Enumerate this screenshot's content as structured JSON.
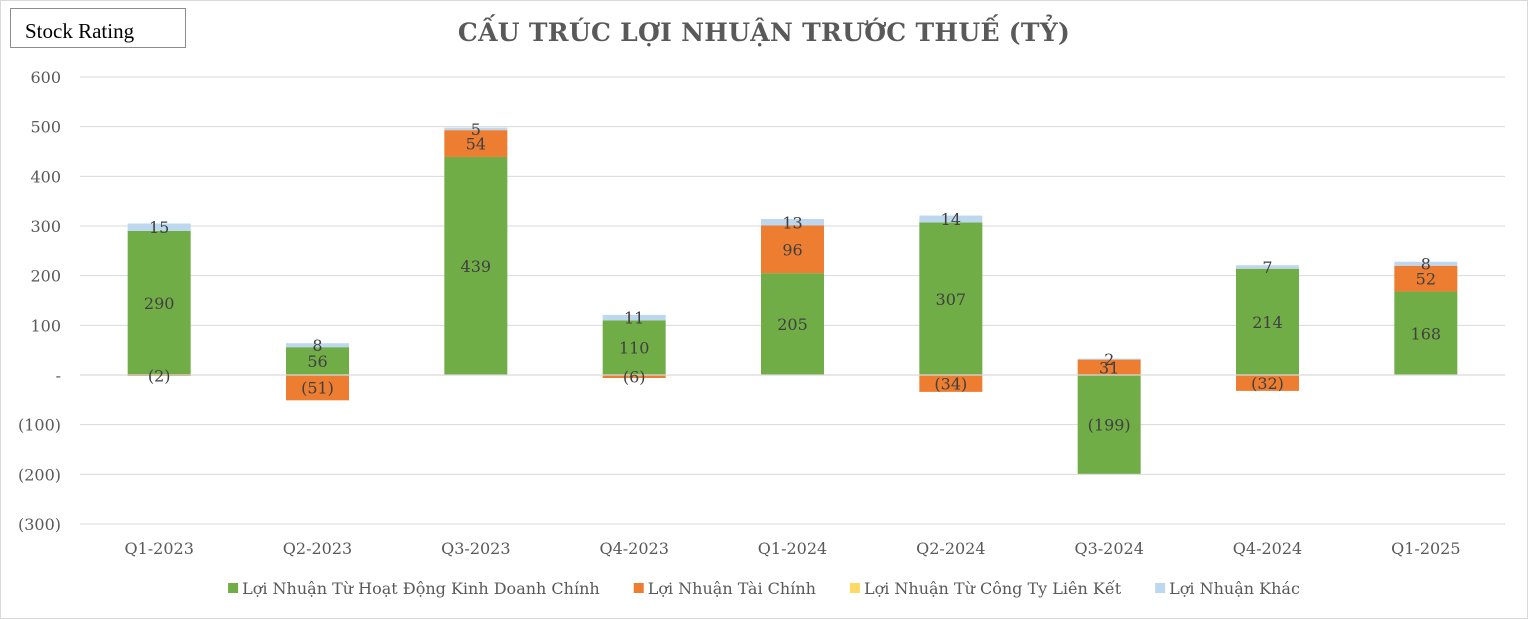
{
  "badge": {
    "label": "Stock Rating"
  },
  "chart_data": {
    "type": "bar",
    "stacked": true,
    "title": "CẤU TRÚC LỢI NHUẬN TRƯỚC THUẾ (TỶ)",
    "xlabel": "",
    "ylabel": "",
    "categories": [
      "Q1-2023",
      "Q2-2023",
      "Q3-2023",
      "Q4-2023",
      "Q1-2024",
      "Q2-2024",
      "Q3-2024",
      "Q4-2024",
      "Q1-2025"
    ],
    "series": [
      {
        "name": "Lợi Nhuận Từ Hoạt Động Kinh Doanh Chính",
        "color": "#70ad47",
        "values": [
          290,
          56,
          439,
          110,
          205,
          307,
          -199,
          214,
          168
        ],
        "labels": [
          "290",
          "56",
          "439",
          "110",
          "205",
          "307",
          "(199)",
          "214",
          "168"
        ]
      },
      {
        "name": "Lợi Nhuận Tài Chính",
        "color": "#ed7d31",
        "values": [
          -2,
          -51,
          54,
          -6,
          96,
          -34,
          31,
          -32,
          52
        ],
        "labels": [
          "(2)",
          "(51)",
          "54",
          "(6)",
          "96",
          "(34)",
          "31",
          "(32)",
          "52"
        ]
      },
      {
        "name": "Lợi Nhuận Từ Công Ty Liên Kết",
        "color": "#ffd966",
        "values": [
          0,
          0,
          0,
          0,
          0,
          0,
          0,
          0,
          0
        ],
        "labels": [
          "",
          "",
          "",
          "",
          "",
          "",
          "",
          "",
          ""
        ]
      },
      {
        "name": "Lợi Nhuận Khác",
        "color": "#bdd7ee",
        "values": [
          15,
          8,
          5,
          11,
          13,
          14,
          2,
          7,
          8
        ],
        "labels": [
          "15",
          "8",
          "5",
          "11",
          "13",
          "14",
          "2",
          "7",
          "8"
        ]
      }
    ],
    "ylim": [
      -300,
      600
    ],
    "yticks": [
      600,
      500,
      400,
      300,
      200,
      100,
      0,
      -100,
      -200,
      -300
    ],
    "ytick_labels": [
      "600",
      "500",
      "400",
      "300",
      "200",
      "100",
      "-",
      "(100)",
      "(200)",
      "(300)"
    ],
    "grid": true,
    "legend_position": "bottom"
  }
}
